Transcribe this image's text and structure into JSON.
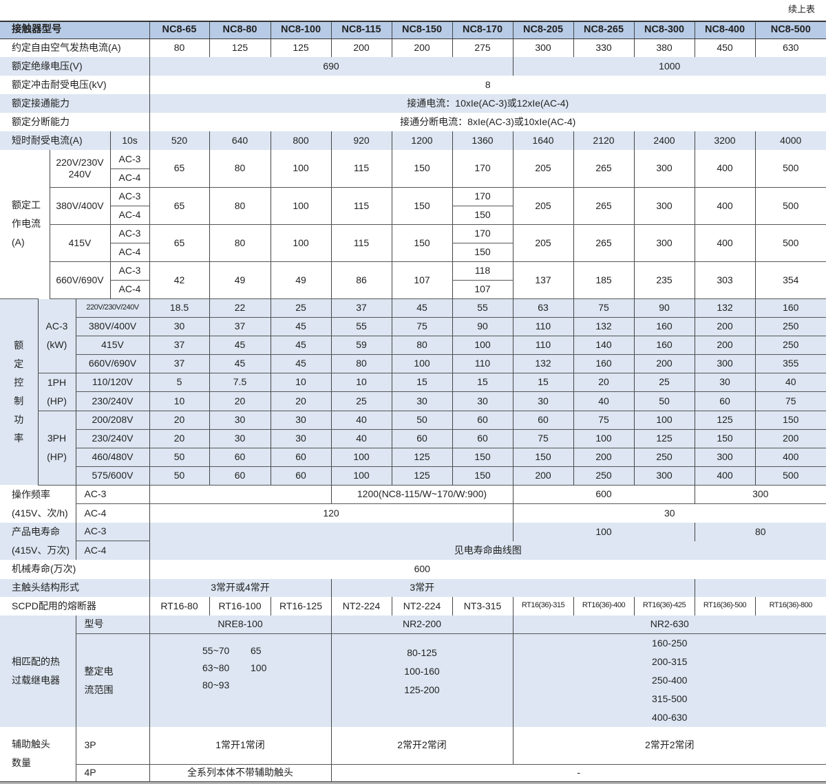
{
  "continued_label": "续上表",
  "colors": {
    "header_bg": "#b7cbe6",
    "band_bg": "#dde6f2",
    "line": "#444444"
  },
  "header": {
    "label": "接触器型号",
    "models": [
      "NC8-65",
      "NC8-80",
      "NC8-100",
      "NC8-115",
      "NC8-150",
      "NC8-170",
      "NC8-205",
      "NC8-265",
      "NC8-300",
      "NC8-400",
      "NC8-500"
    ]
  },
  "thermal_current": {
    "label": "约定自由空气发热电流(A)",
    "values": [
      "80",
      "125",
      "125",
      "200",
      "200",
      "275",
      "300",
      "330",
      "380",
      "450",
      "630"
    ]
  },
  "insulation_voltage": {
    "label": "额定绝缘电压(V)",
    "values": [
      "690",
      "1000"
    ]
  },
  "impulse_voltage": {
    "label": "额定冲击耐受电压(kV)",
    "value": "8"
  },
  "making_capacity": {
    "label": "额定接通能力",
    "value": "接通电流：10xIe(AC-3)或12xIe(AC-4)"
  },
  "breaking_capacity": {
    "label": "额定分断能力",
    "value": "接通分断电流：8xIe(AC-3)或10xIe(AC-4)"
  },
  "short_time_current": {
    "label": "短时耐受电流(A)",
    "duration": "10s",
    "values": [
      "520",
      "640",
      "800",
      "920",
      "1200",
      "1360",
      "1640",
      "2120",
      "2400",
      "3200",
      "4000"
    ]
  },
  "operating_current": {
    "label_lines": [
      "额定工",
      "作电流",
      "(A)"
    ],
    "groups": [
      {
        "voltage_lines": [
          "220V/230V",
          "240V"
        ],
        "categories": [
          "AC-3",
          "AC-4"
        ],
        "values": [
          "65",
          "80",
          "100",
          "115",
          "150",
          "170",
          "205",
          "265",
          "300",
          "400",
          "500"
        ]
      },
      {
        "voltage_lines": [
          "380V/400V"
        ],
        "categories": [
          "AC-3",
          "AC-4"
        ],
        "values": [
          "65",
          "80",
          "100",
          "115",
          "150",
          [
            "170",
            "150"
          ],
          "205",
          "265",
          "300",
          "400",
          "500"
        ]
      },
      {
        "voltage_lines": [
          "415V"
        ],
        "categories": [
          "AC-3",
          "AC-4"
        ],
        "values": [
          "65",
          "80",
          "100",
          "115",
          "150",
          [
            "170",
            "150"
          ],
          "205",
          "265",
          "300",
          "400",
          "500"
        ]
      },
      {
        "voltage_lines": [
          "660V/690V"
        ],
        "categories": [
          "AC-3",
          "AC-4"
        ],
        "values": [
          "42",
          "49",
          "49",
          "86",
          "107",
          [
            "118",
            "107"
          ],
          "137",
          "185",
          "235",
          "303",
          "354"
        ]
      }
    ]
  },
  "control_power": {
    "label_chars": [
      "额",
      "定",
      "控",
      "制",
      "功",
      "率"
    ],
    "groups": [
      {
        "label_lines": [
          "AC-3",
          "(kW)"
        ],
        "rows": [
          {
            "voltage": "220V/230V/240V",
            "values": [
              "18.5",
              "22",
              "25",
              "37",
              "45",
              "55",
              "63",
              "75",
              "90",
              "132",
              "160"
            ]
          },
          {
            "voltage": "380V/400V",
            "values": [
              "30",
              "37",
              "45",
              "55",
              "75",
              "90",
              "110",
              "132",
              "160",
              "200",
              "250"
            ]
          },
          {
            "voltage": "415V",
            "values": [
              "37",
              "45",
              "45",
              "59",
              "80",
              "100",
              "110",
              "140",
              "160",
              "200",
              "250"
            ]
          },
          {
            "voltage": "660V/690V",
            "values": [
              "37",
              "45",
              "45",
              "80",
              "100",
              "110",
              "132",
              "160",
              "200",
              "300",
              "355"
            ]
          }
        ]
      },
      {
        "label_lines": [
          "1PH",
          "(HP)"
        ],
        "rows": [
          {
            "voltage": "110/120V",
            "values": [
              "5",
              "7.5",
              "10",
              "10",
              "15",
              "15",
              "15",
              "20",
              "25",
              "30",
              "40"
            ]
          },
          {
            "voltage": "230/240V",
            "values": [
              "10",
              "20",
              "20",
              "25",
              "30",
              "30",
              "30",
              "40",
              "50",
              "60",
              "75"
            ]
          }
        ]
      },
      {
        "label_lines": [
          "3PH",
          "(HP)"
        ],
        "rows": [
          {
            "voltage": "200/208V",
            "values": [
              "20",
              "30",
              "30",
              "40",
              "50",
              "60",
              "60",
              "75",
              "100",
              "125",
              "150"
            ]
          },
          {
            "voltage": "230/240V",
            "values": [
              "20",
              "30",
              "30",
              "40",
              "60",
              "60",
              "75",
              "100",
              "125",
              "150",
              "200"
            ]
          },
          {
            "voltage": "460/480V",
            "values": [
              "50",
              "60",
              "60",
              "100",
              "125",
              "150",
              "150",
              "200",
              "250",
              "300",
              "400"
            ]
          },
          {
            "voltage": "575/600V",
            "values": [
              "50",
              "60",
              "60",
              "100",
              "125",
              "150",
              "200",
              "250",
              "300",
              "400",
              "500"
            ]
          }
        ]
      }
    ]
  },
  "operating_frequency": {
    "label_lines": [
      "操作频率",
      "(415V、次/h)"
    ],
    "ac3": {
      "label": "AC-3",
      "values": [
        "",
        "1200(NC8-115/W~170/W:900)",
        "600",
        "300"
      ]
    },
    "ac4": {
      "label": "AC-4",
      "values": [
        "120",
        "30"
      ]
    }
  },
  "electrical_life": {
    "label_lines": [
      "产品电寿命",
      "(415V、万次)"
    ],
    "ac3": {
      "label": "AC-3",
      "values": [
        "",
        "100",
        "80"
      ]
    },
    "ac4": {
      "label": "AC-4",
      "value": "见电寿命曲线图"
    }
  },
  "mechanical_life": {
    "label": "机械寿命(万次)",
    "value": "600"
  },
  "main_contact": {
    "label": "主触头结构形式",
    "values": [
      "3常开或4常开",
      "3常开"
    ]
  },
  "scpd_fuse": {
    "label": "SCPD配用的熔断器",
    "values": [
      "RT16-80",
      "RT16-100",
      "RT16-125",
      "NT2-224",
      "NT2-224",
      "NT3-315",
      "RT16(36)-315",
      "RT16(36)-400",
      "RT16(36)-425",
      "RT16(36)-500",
      "RT16(36)-800"
    ]
  },
  "thermal_relay": {
    "label_lines": [
      "相匹配的热",
      "过载继电器"
    ],
    "model": {
      "label": "型号",
      "values": [
        "NRE8-100",
        "NR2-200",
        "NR2-630"
      ]
    },
    "setting_range": {
      "label_lines": [
        "整定电",
        "流范围"
      ],
      "nre8": [
        [
          "55~70",
          "65"
        ],
        [
          "63~80",
          "100"
        ],
        [
          "80~93",
          ""
        ]
      ],
      "nr2_200": [
        "80-125",
        "100-160",
        "125-200"
      ],
      "nr2_630": [
        "160-250",
        "200-315",
        "250-400",
        "315-500",
        "400-630"
      ]
    }
  },
  "aux_contacts": {
    "label_lines": [
      "辅助触头",
      "数量"
    ],
    "p3": {
      "label": "3P",
      "values": [
        "1常开1常闭",
        "2常开2常闭",
        "2常开2常闭"
      ]
    },
    "p4": {
      "label": "4P",
      "values": [
        "全系列本体不带辅助触头",
        "-"
      ]
    }
  }
}
